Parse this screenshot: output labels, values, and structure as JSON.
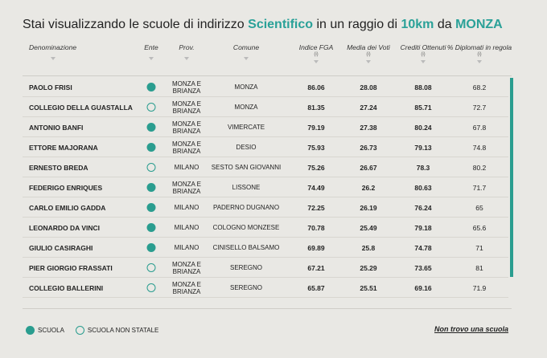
{
  "title": {
    "prefix": "Stai visualizzando le scuole di indirizzo ",
    "indirizzo": "Scientifico",
    "mid": " in un raggio di ",
    "raggio": "10km",
    "mid2": " da ",
    "citta": "MONZA"
  },
  "headers": {
    "denominazione": "Denominazione",
    "ente": "Ente",
    "prov": "Prov.",
    "comune": "Comune",
    "fga": "Indice FGA",
    "fga_sub": "(i)",
    "voti": "Media dei Voti",
    "voti_sub": "(i)",
    "crediti": "Crediti Ottenuti",
    "crediti_sub": "(i)",
    "diplomati": "% Diplomati in regola",
    "diplomati_sub": "(i)"
  },
  "rows": [
    {
      "name": "PAOLO FRISI",
      "ente": "filled",
      "prov": "MONZA E BRIANZA",
      "comune": "MONZA",
      "fga": "86.06",
      "voti": "28.08",
      "crediti": "88.08",
      "dipl": "68.2"
    },
    {
      "name": "COLLEGIO DELLA GUASTALLA",
      "ente": "empty",
      "prov": "MONZA E BRIANZA",
      "comune": "MONZA",
      "fga": "81.35",
      "voti": "27.24",
      "crediti": "85.71",
      "dipl": "72.7"
    },
    {
      "name": "ANTONIO BANFI",
      "ente": "filled",
      "prov": "MONZA E BRIANZA",
      "comune": "VIMERCATE",
      "fga": "79.19",
      "voti": "27.38",
      "crediti": "80.24",
      "dipl": "67.8"
    },
    {
      "name": "ETTORE MAJORANA",
      "ente": "filled",
      "prov": "MONZA E BRIANZA",
      "comune": "DESIO",
      "fga": "75.93",
      "voti": "26.73",
      "crediti": "79.13",
      "dipl": "74.8"
    },
    {
      "name": "ERNESTO BREDA",
      "ente": "empty",
      "prov": "MILANO",
      "comune": "SESTO SAN GIOVANNI",
      "fga": "75.26",
      "voti": "26.67",
      "crediti": "78.3",
      "dipl": "80.2"
    },
    {
      "name": "FEDERIGO ENRIQUES",
      "ente": "filled",
      "prov": "MONZA E BRIANZA",
      "comune": "LISSONE",
      "fga": "74.49",
      "voti": "26.2",
      "crediti": "80.63",
      "dipl": "71.7"
    },
    {
      "name": "CARLO EMILIO GADDA",
      "ente": "filled",
      "prov": "MILANO",
      "comune": "PADERNO DUGNANO",
      "fga": "72.25",
      "voti": "26.19",
      "crediti": "76.24",
      "dipl": "65"
    },
    {
      "name": "LEONARDO DA VINCI",
      "ente": "filled",
      "prov": "MILANO",
      "comune": "COLOGNO MONZESE",
      "fga": "70.78",
      "voti": "25.49",
      "crediti": "79.18",
      "dipl": "65.6"
    },
    {
      "name": "GIULIO CASIRAGHI",
      "ente": "filled",
      "prov": "MILANO",
      "comune": "CINISELLO BALSAMO",
      "fga": "69.89",
      "voti": "25.8",
      "crediti": "74.78",
      "dipl": "71"
    },
    {
      "name": "PIER GIORGIO FRASSATI",
      "ente": "empty",
      "prov": "MONZA E BRIANZA",
      "comune": "SEREGNO",
      "fga": "67.21",
      "voti": "25.29",
      "crediti": "73.65",
      "dipl": "81"
    },
    {
      "name": "COLLEGIO BALLERINI",
      "ente": "empty",
      "prov": "MONZA E BRIANZA",
      "comune": "SEREGNO",
      "fga": "65.87",
      "voti": "25.51",
      "crediti": "69.16",
      "dipl": "71.9"
    }
  ],
  "legend": {
    "statale": "SCUOLA",
    "non_statale": "SCUOLA NON STATALE"
  },
  "link": "Non trovo una scuola",
  "colors": {
    "accent": "#2a9d8f",
    "background": "#e9e8e4"
  }
}
